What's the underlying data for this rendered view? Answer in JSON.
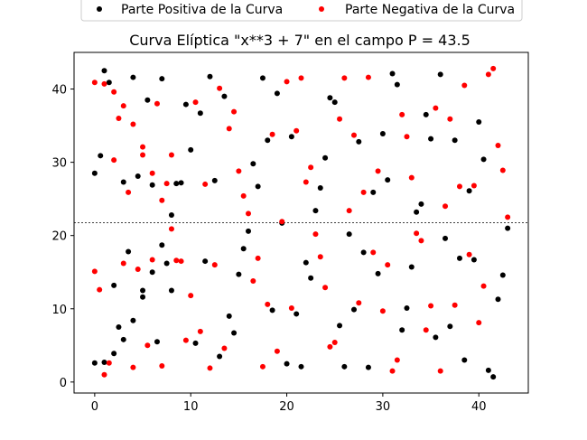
{
  "chart_data": {
    "type": "scatter",
    "title": "Curva Elíptica \"x**3 + 7\" en el campo P = 43.5",
    "xlabel": "",
    "ylabel": "",
    "xlim": [
      -2.15,
      45.15
    ],
    "ylim": [
      -1.5,
      45.0
    ],
    "xticks": [
      0,
      10,
      20,
      30,
      40
    ],
    "yticks": [
      0,
      10,
      20,
      30,
      40
    ],
    "grid": false,
    "legend_position": "top-center, above axes",
    "hline": {
      "y": 21.75,
      "style": "dotted",
      "color": "#000000"
    },
    "series": [
      {
        "name": "Parte Positiva de la Curva",
        "color": "#000000",
        "points": [
          [
            0,
            28.5
          ],
          [
            0,
            2.6
          ],
          [
            0.6,
            30.9
          ],
          [
            1,
            42.5
          ],
          [
            1,
            2.7
          ],
          [
            1.5,
            40.9
          ],
          [
            2,
            13.2
          ],
          [
            2,
            3.9
          ],
          [
            2.5,
            7.5
          ],
          [
            3,
            27.3
          ],
          [
            3,
            5.8
          ],
          [
            3.5,
            17.8
          ],
          [
            4,
            41.6
          ],
          [
            4,
            8.4
          ],
          [
            4.5,
            28.1
          ],
          [
            5,
            12.5
          ],
          [
            5,
            11.6
          ],
          [
            5.5,
            38.5
          ],
          [
            6,
            26.9
          ],
          [
            6,
            15
          ],
          [
            6.5,
            5.5
          ],
          [
            7,
            41.4
          ],
          [
            7,
            18.7
          ],
          [
            7.5,
            16.2
          ],
          [
            8,
            22.8
          ],
          [
            8,
            12.5
          ],
          [
            8.5,
            27.1
          ],
          [
            9,
            27.2
          ],
          [
            9.5,
            37.9
          ],
          [
            10,
            31.7
          ],
          [
            10.5,
            5.3
          ],
          [
            11,
            36.7
          ],
          [
            11.5,
            16.5
          ],
          [
            12,
            41.7
          ],
          [
            12.5,
            27.5
          ],
          [
            13,
            3.5
          ],
          [
            13.5,
            39
          ],
          [
            14,
            9
          ],
          [
            14.5,
            6.7
          ],
          [
            15,
            14.7
          ],
          [
            15.5,
            18.2
          ],
          [
            16,
            20.6
          ],
          [
            16.5,
            29.8
          ],
          [
            17,
            26.7
          ],
          [
            17.5,
            41.5
          ],
          [
            18,
            33
          ],
          [
            18.5,
            9.8
          ],
          [
            19,
            39.4
          ],
          [
            19.5,
            21.7
          ],
          [
            20,
            2.5
          ],
          [
            20.5,
            33.5
          ],
          [
            21,
            9.3
          ],
          [
            21.5,
            2.1
          ],
          [
            22,
            16.3
          ],
          [
            22.5,
            14.2
          ],
          [
            23,
            23.4
          ],
          [
            23.5,
            26.5
          ],
          [
            24,
            30.6
          ],
          [
            24.5,
            38.8
          ],
          [
            25,
            38.2
          ],
          [
            25.5,
            7.7
          ],
          [
            26,
            2.1
          ],
          [
            26.5,
            20.2
          ],
          [
            27,
            9.9
          ],
          [
            27.5,
            32.8
          ],
          [
            28,
            17.7
          ],
          [
            28.5,
            2
          ],
          [
            29,
            25.9
          ],
          [
            29.5,
            14.8
          ],
          [
            30,
            33.9
          ],
          [
            30.5,
            27.6
          ],
          [
            31,
            42.1
          ],
          [
            31.5,
            40.6
          ],
          [
            32,
            7.1
          ],
          [
            32.5,
            10.1
          ],
          [
            33,
            15.7
          ],
          [
            33.5,
            23.2
          ],
          [
            34,
            24.3
          ],
          [
            34.5,
            36.5
          ],
          [
            35,
            33.2
          ],
          [
            35.5,
            6.1
          ],
          [
            36,
            42
          ],
          [
            36.5,
            19.6
          ],
          [
            37,
            7.6
          ],
          [
            37.5,
            33
          ],
          [
            38,
            16.9
          ],
          [
            38.5,
            3
          ],
          [
            39,
            26.1
          ],
          [
            39.5,
            16.7
          ],
          [
            40,
            35.5
          ],
          [
            40.5,
            30.4
          ],
          [
            41,
            1.6
          ],
          [
            41.5,
            0.7
          ],
          [
            42,
            11.3
          ],
          [
            42.5,
            14.6
          ],
          [
            43,
            21
          ]
        ]
      },
      {
        "name": "Parte Negativa de la Curva",
        "color": "#ff0000",
        "points": [
          [
            0,
            40.9
          ],
          [
            0,
            15.1
          ],
          [
            0.5,
            12.6
          ],
          [
            1,
            40.7
          ],
          [
            1,
            1
          ],
          [
            1.5,
            2.6
          ],
          [
            2,
            30.3
          ],
          [
            2,
            39.6
          ],
          [
            2.5,
            36
          ],
          [
            3,
            37.7
          ],
          [
            3,
            16.2
          ],
          [
            3.5,
            25.9
          ],
          [
            4,
            35.2
          ],
          [
            4,
            2
          ],
          [
            4.5,
            15.4
          ],
          [
            5,
            32.1
          ],
          [
            5,
            31
          ],
          [
            5.5,
            5
          ],
          [
            6,
            16.7
          ],
          [
            6,
            28.5
          ],
          [
            6.5,
            38
          ],
          [
            7,
            24.8
          ],
          [
            7,
            2.2
          ],
          [
            7.5,
            27.1
          ],
          [
            8,
            31
          ],
          [
            8,
            20.9
          ],
          [
            8.5,
            16.6
          ],
          [
            9,
            16.5
          ],
          [
            9.5,
            5.7
          ],
          [
            10,
            11.8
          ],
          [
            10.5,
            38.2
          ],
          [
            11,
            6.9
          ],
          [
            11.5,
            27
          ],
          [
            12,
            1.9
          ],
          [
            12.5,
            16
          ],
          [
            13,
            40.1
          ],
          [
            13.5,
            4.6
          ],
          [
            14,
            34.6
          ],
          [
            14.5,
            36.9
          ],
          [
            15,
            28.8
          ],
          [
            15.5,
            25.4
          ],
          [
            16,
            23
          ],
          [
            16.5,
            13.8
          ],
          [
            17,
            16.9
          ],
          [
            17.5,
            2.1
          ],
          [
            18,
            10.6
          ],
          [
            18.5,
            33.8
          ],
          [
            19,
            4.2
          ],
          [
            19.5,
            21.9
          ],
          [
            20,
            41
          ],
          [
            20.5,
            10.1
          ],
          [
            21,
            34.3
          ],
          [
            21.5,
            41.5
          ],
          [
            22,
            27.3
          ],
          [
            22.5,
            29.3
          ],
          [
            23,
            20.2
          ],
          [
            23.5,
            17.1
          ],
          [
            24,
            12.9
          ],
          [
            24.5,
            4.8
          ],
          [
            25,
            5.4
          ],
          [
            25.5,
            35.9
          ],
          [
            26,
            41.5
          ],
          [
            26.5,
            23.4
          ],
          [
            27,
            33.7
          ],
          [
            27.5,
            10.8
          ],
          [
            28,
            25.9
          ],
          [
            28.5,
            41.6
          ],
          [
            29,
            17.7
          ],
          [
            29.5,
            28.8
          ],
          [
            30,
            9.7
          ],
          [
            30.5,
            16
          ],
          [
            31,
            1.5
          ],
          [
            31.5,
            3
          ],
          [
            32,
            36.5
          ],
          [
            32.5,
            33.5
          ],
          [
            33,
            27.9
          ],
          [
            33.5,
            20.3
          ],
          [
            34,
            19.3
          ],
          [
            34.5,
            7.1
          ],
          [
            35,
            10.4
          ],
          [
            35.5,
            37.4
          ],
          [
            36,
            1.5
          ],
          [
            36.5,
            24
          ],
          [
            37,
            35.9
          ],
          [
            37.5,
            10.5
          ],
          [
            38,
            26.7
          ],
          [
            38.5,
            40.5
          ],
          [
            39,
            17.4
          ],
          [
            39.5,
            26.8
          ],
          [
            40,
            8.1
          ],
          [
            40.5,
            13.1
          ],
          [
            41,
            42
          ],
          [
            41.5,
            42.8
          ],
          [
            42,
            32.3
          ],
          [
            42.5,
            28.9
          ],
          [
            43,
            22.5
          ]
        ]
      }
    ]
  }
}
